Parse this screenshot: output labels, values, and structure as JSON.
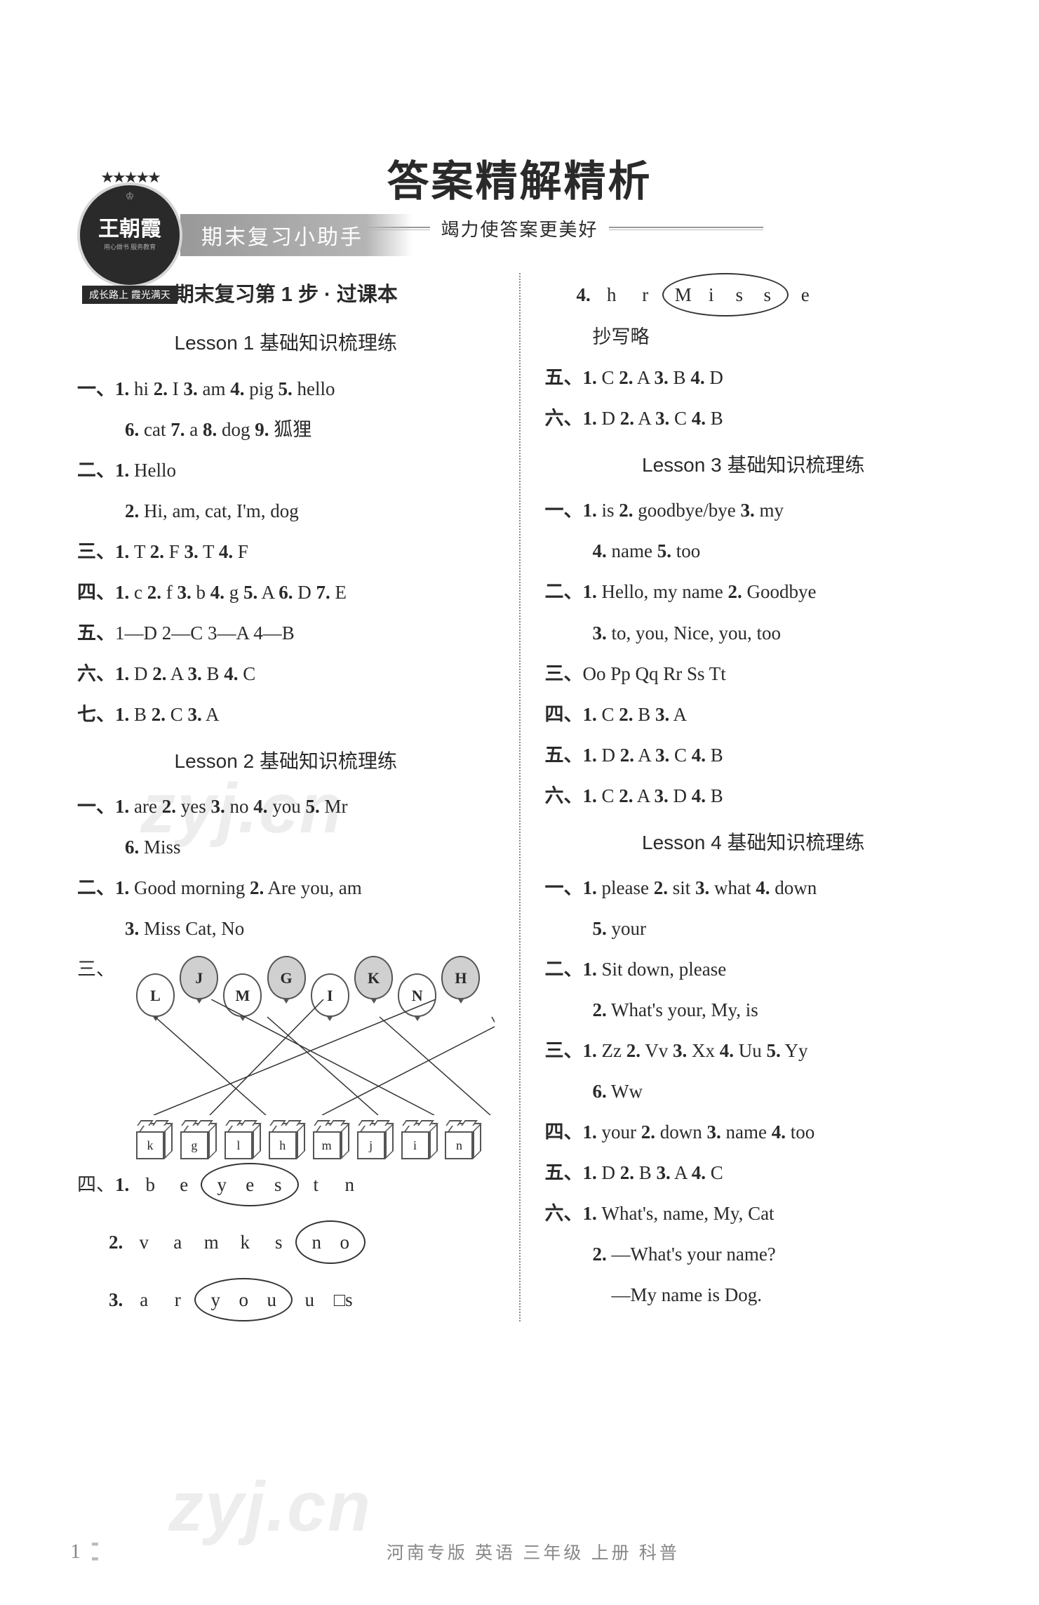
{
  "badge": {
    "main": "王朝霞",
    "sub1": "用心做书 服务教育",
    "banner": "成长路上  霞光满天"
  },
  "header_tab": "期末复习小助手",
  "title": "答案精解精析",
  "subtitle": "竭力使答案更美好",
  "step_title": "期末复习第 1 步 · 过课本",
  "lesson1": {
    "title": "Lesson 1   基础知识梳理练",
    "l1": "一、1. hi   2. I   3. am   4. pig   5. hello",
    "l2": "6. cat   7. a   8. dog   9. 狐狸",
    "l3": "二、1. Hello",
    "l4": "2. Hi, am, cat, I'm, dog",
    "l5": "三、1. T   2. F   3. T   4. F",
    "l6": "四、1. c   2. f   3. b   4. g   5. A   6. D   7. E",
    "l7": "五、1—D   2—C   3—A   4—B",
    "l8": "六、1. D   2. A   3. B   4. C",
    "l9": "七、1. B   2. C   3. A"
  },
  "lesson2": {
    "title": "Lesson 2   基础知识梳理练",
    "l1": "一、1. are   2. yes   3. no   4. you   5. Mr",
    "l2": "6. Miss",
    "l3": "二、1. Good morning   2. Are you, am",
    "l4": "3. Miss Cat, No",
    "l5_prefix": "三、",
    "balloons": [
      "L",
      "J",
      "M",
      "G",
      "I",
      "K",
      "N",
      "H"
    ],
    "balloons_shaded": [
      false,
      true,
      false,
      true,
      false,
      true,
      false,
      true
    ],
    "boxes": [
      "k",
      "g",
      "l",
      "h",
      "m",
      "j",
      "i",
      "n"
    ],
    "lines": [
      [
        0,
        2
      ],
      [
        1,
        5
      ],
      [
        2,
        4
      ],
      [
        3,
        1
      ],
      [
        4,
        6
      ],
      [
        5,
        0
      ],
      [
        6,
        7
      ],
      [
        7,
        3
      ]
    ],
    "l6_prefix": "四、",
    "letters1": {
      "num": "1.",
      "chars": [
        "b",
        "e",
        "y",
        "e",
        "s",
        "t",
        "n"
      ],
      "circle_start": 2,
      "circle_end": 4
    },
    "letters2": {
      "num": "2.",
      "chars": [
        "v",
        "a",
        "m",
        "k",
        "s",
        "n",
        "o"
      ],
      "circle_start": 5,
      "circle_end": 6
    },
    "letters3": {
      "num": "3.",
      "chars": [
        "a",
        "r",
        "y",
        "o",
        "u",
        "u",
        "□s"
      ],
      "circle_start": 2,
      "circle_end": 4
    },
    "letters4": {
      "num": "4.",
      "chars": [
        "h",
        "r",
        "M",
        "i",
        "s",
        "s",
        "e"
      ],
      "circle_start": 2,
      "circle_end": 5
    },
    "l10": "抄写略",
    "l11": "五、1. C   2. A   3. B   4. D",
    "l12": "六、1. D   2. A   3. C   4. B"
  },
  "lesson3": {
    "title": "Lesson 3   基础知识梳理练",
    "l1": "一、1. is   2. goodbye/bye   3. my",
    "l2": "4. name   5. too",
    "l3": "二、1. Hello, my name   2. Goodbye",
    "l4": "3. to, you, Nice, you, too",
    "l5": "三、Oo   Pp   Qq   Rr   Ss   Tt",
    "l6": "四、1. C   2. B   3. A",
    "l7": "五、1. D   2. A   3. C   4. B",
    "l8": "六、1. C   2. A   3. D   4. B"
  },
  "lesson4": {
    "title": "Lesson 4   基础知识梳理练",
    "l1": "一、1. please   2. sit   3. what   4. down",
    "l2": "5. your",
    "l3": "二、1. Sit down, please",
    "l4": "2. What's your, My, is",
    "l5": "三、1. Zz   2. Vv   3. Xx   4. Uu   5. Yy",
    "l6": "6. Ww",
    "l7": "四、1. your   2. down   3. name   4. too",
    "l8": "五、1. D   2. B   3. A   4. C",
    "l9": "六、1. What's, name, My, Cat",
    "l10": "2. —What's your name?",
    "l11": "    —My name is Dog."
  },
  "watermark": "zyj.cn",
  "footer": {
    "page": "1",
    "text": "河南专版   英语   三年级   上册   科普"
  }
}
